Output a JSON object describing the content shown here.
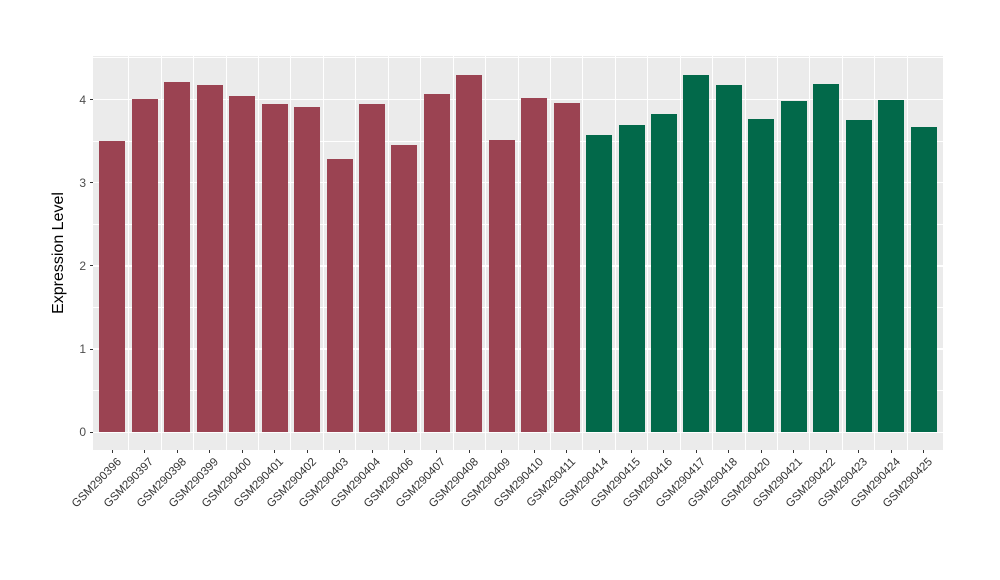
{
  "chart_data": {
    "type": "bar",
    "title": "",
    "xlabel": "",
    "ylabel": "Expression Level",
    "categories": [
      "GSM290396",
      "GSM290397",
      "GSM290398",
      "GSM290399",
      "GSM290400",
      "GSM290401",
      "GSM290402",
      "GSM290403",
      "GSM290404",
      "GSM290406",
      "GSM290407",
      "GSM290408",
      "GSM290409",
      "GSM290410",
      "GSM290411",
      "GSM290414",
      "GSM290415",
      "GSM290416",
      "GSM290417",
      "GSM290418",
      "GSM290420",
      "GSM290421",
      "GSM290422",
      "GSM290423",
      "GSM290424",
      "GSM290425"
    ],
    "values": [
      3.5,
      4.01,
      4.21,
      4.18,
      4.04,
      3.95,
      3.91,
      3.28,
      3.95,
      3.45,
      4.07,
      4.3,
      3.51,
      4.02,
      3.96,
      3.57,
      3.69,
      3.83,
      4.3,
      4.18,
      3.76,
      3.98,
      4.19,
      3.75,
      4.0,
      3.67
    ],
    "groups": [
      "maroon",
      "maroon",
      "maroon",
      "maroon",
      "maroon",
      "maroon",
      "maroon",
      "maroon",
      "maroon",
      "maroon",
      "maroon",
      "maroon",
      "maroon",
      "maroon",
      "maroon",
      "green",
      "green",
      "green",
      "green",
      "green",
      "green",
      "green",
      "green",
      "green",
      "green",
      "green"
    ],
    "group_colors": {
      "maroon": "#9B4352",
      "green": "#02694A"
    },
    "yticks": [
      0,
      1,
      2,
      3,
      4
    ],
    "ylim": [
      0,
      4.52
    ],
    "grid": true,
    "legend_position": "none",
    "panel_background": "#EBEBEB",
    "gridline_color": "#FFFFFF",
    "axis_text_color": "#333333"
  }
}
